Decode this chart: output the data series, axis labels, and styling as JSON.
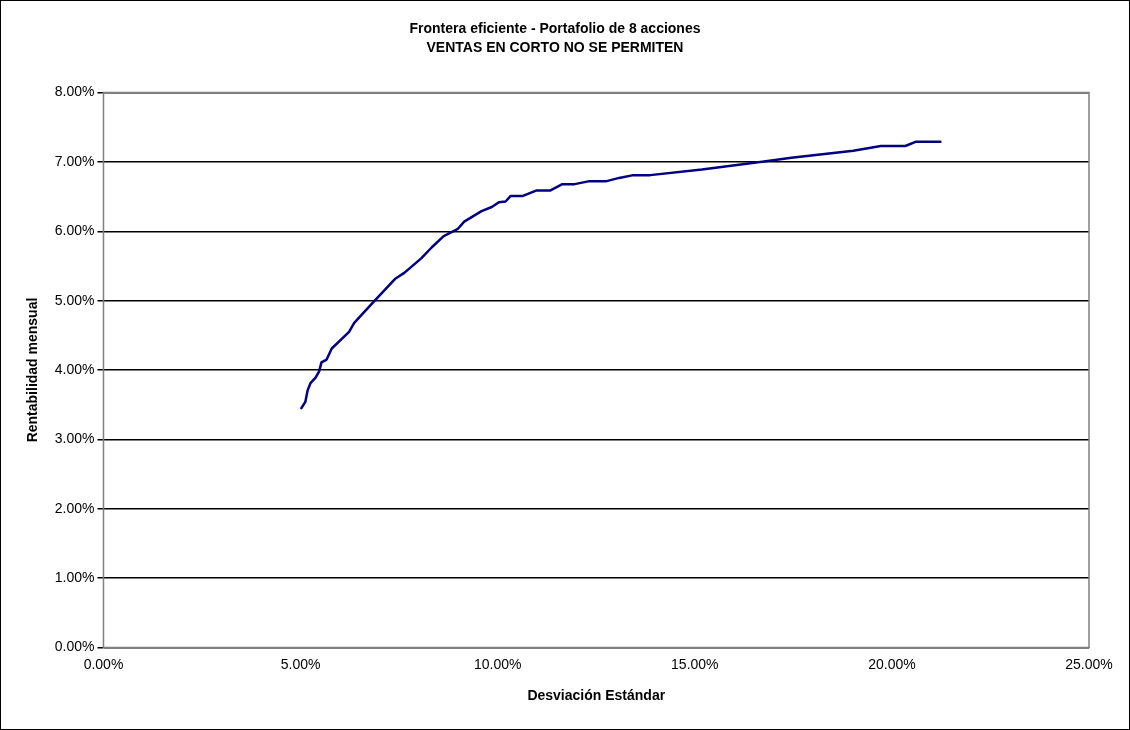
{
  "chart_data": {
    "type": "line",
    "title": "Frontera eficiente - Portafolio de 8 acciones",
    "subtitle": "VENTAS EN CORTO NO SE PERMITEN",
    "xlabel": "Desviación Estándar",
    "ylabel": "Rentabilidad mensual",
    "x": [
      5.02,
      5.12,
      5.18,
      5.25,
      5.38,
      5.47,
      5.53,
      5.66,
      5.79,
      6.23,
      6.36,
      6.88,
      7.41,
      7.63,
      8.06,
      8.33,
      8.63,
      8.98,
      9.15,
      9.59,
      9.85,
      10.03,
      10.2,
      10.33,
      10.64,
      10.99,
      11.34,
      11.64,
      11.95,
      12.3,
      12.74,
      13.08,
      13.44,
      13.87,
      15.18,
      17.45,
      19.02,
      19.72,
      20.34,
      20.6,
      21.23
    ],
    "series": [
      {
        "color": "#000080",
        "values": [
          3.45,
          3.54,
          3.71,
          3.81,
          3.89,
          3.98,
          4.11,
          4.15,
          4.31,
          4.55,
          4.68,
          5.0,
          5.32,
          5.4,
          5.61,
          5.77,
          5.93,
          6.03,
          6.14,
          6.29,
          6.35,
          6.42,
          6.43,
          6.51,
          6.51,
          6.59,
          6.59,
          6.68,
          6.68,
          6.72,
          6.72,
          6.77,
          6.81,
          6.81,
          6.89,
          7.06,
          7.16,
          7.23,
          7.23,
          7.29,
          7.29
        ]
      }
    ],
    "xlim": [
      0,
      25
    ],
    "xticks": [
      {
        "value": 0,
        "label": "0.00%"
      },
      {
        "value": 5,
        "label": "5.00%"
      },
      {
        "value": 10,
        "label": "10.00%"
      },
      {
        "value": 15,
        "label": "15.00%"
      },
      {
        "value": 20,
        "label": "20.00%"
      },
      {
        "value": 25,
        "label": "25.00%"
      }
    ],
    "ylim": [
      0,
      8
    ],
    "yticks": [
      {
        "value": 0,
        "label": "0.00%"
      },
      {
        "value": 1,
        "label": "1.00%"
      },
      {
        "value": 2,
        "label": "2.00%"
      },
      {
        "value": 3,
        "label": "3.00%"
      },
      {
        "value": 4,
        "label": "4.00%"
      },
      {
        "value": 5,
        "label": "5.00%"
      },
      {
        "value": 6,
        "label": "6.00%"
      },
      {
        "value": 7,
        "label": "7.00%"
      },
      {
        "value": 8,
        "label": "8.00%"
      }
    ],
    "grid": "y",
    "legend": false,
    "marker": "none",
    "line_style": "solid"
  }
}
